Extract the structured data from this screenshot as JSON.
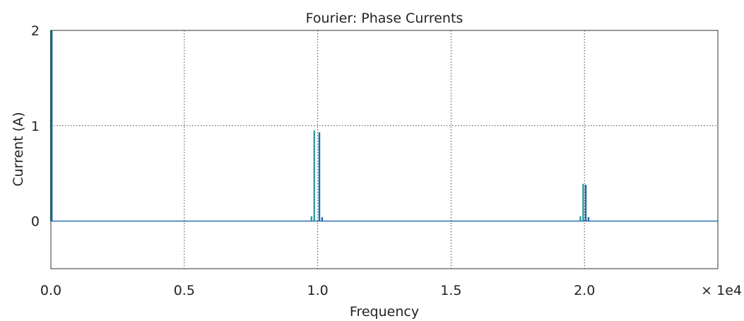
{
  "chart_data": {
    "type": "bar",
    "title": "Fourier: Phase Currents",
    "xlabel": "Frequency",
    "ylabel": "Current (A)",
    "x_multiplier": "× 1e4",
    "xlim": [
      0,
      2.5
    ],
    "ylim": [
      -0.5,
      2
    ],
    "xticks": [
      {
        "value": 0,
        "label": "0.0"
      },
      {
        "value": 0.5,
        "label": "0.5"
      },
      {
        "value": 1.0,
        "label": "1.0"
      },
      {
        "value": 1.5,
        "label": "1.5"
      },
      {
        "value": 2.0,
        "label": "2.0"
      }
    ],
    "yticks": [
      {
        "value": 0,
        "label": "0"
      },
      {
        "value": 1,
        "label": "1"
      },
      {
        "value": 2,
        "label": "2"
      }
    ],
    "grid": true,
    "series": [
      {
        "color": "#2aa198",
        "x": [
          0.0,
          0.9768,
          0.9872,
          1.9848,
          1.9952
        ],
        "y": [
          2.0,
          0.05,
          0.95,
          0.05,
          0.39
        ]
      },
      {
        "color": "#2166b0",
        "x": [
          0.0032,
          1.0064,
          1.0168,
          2.0048,
          2.0152
        ],
        "y": [
          2.0,
          0.93,
          0.04,
          0.38,
          0.04
        ]
      }
    ]
  }
}
